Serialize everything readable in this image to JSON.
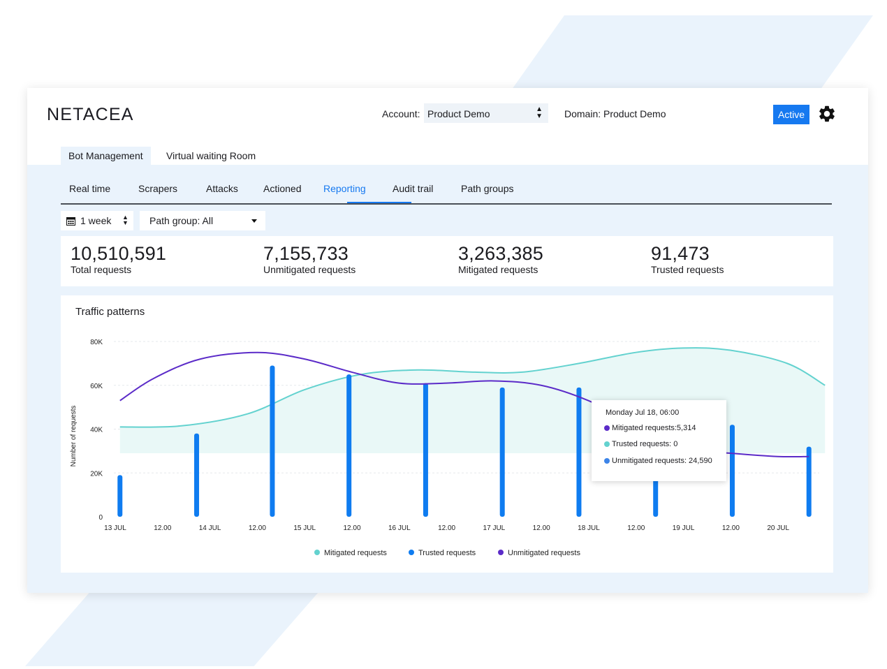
{
  "app": {
    "logo": "NETACEA"
  },
  "header": {
    "account_label": "Account:",
    "account_value": "Product Demo",
    "domain_text": "Domain: Product Demo",
    "status_badge": "Active",
    "settings_icon": "gear-icon"
  },
  "tabs": [
    {
      "label": "Bot Management",
      "active": true
    },
    {
      "label": "Virtual waiting Room",
      "active": false
    }
  ],
  "subnav": [
    {
      "label": "Real time"
    },
    {
      "label": "Scrapers"
    },
    {
      "label": "Attacks"
    },
    {
      "label": "Actioned"
    },
    {
      "label": "Reporting",
      "active": true
    },
    {
      "label": "Audit trail"
    },
    {
      "label": "Path groups"
    }
  ],
  "filters": {
    "period": "1 week",
    "path_group": "Path group: All"
  },
  "stats": [
    {
      "value": "10,510,591",
      "label": "Total requests"
    },
    {
      "value": "7,155,733",
      "label": "Unmitigated requests"
    },
    {
      "value": "3,263,385",
      "label": "Mitigated requests"
    },
    {
      "value": "91,473",
      "label": "Trusted requests"
    }
  ],
  "chart_title": "Traffic patterns",
  "tooltip": {
    "title": "Monday Jul 18, 06:00",
    "rows": [
      {
        "text": "Mitigated requests:5,314",
        "color": "#5b2bc8"
      },
      {
        "text": "Trusted requests: 0",
        "color": "#63d2cf"
      },
      {
        "text": "Unmitigated requests: 24,590",
        "color": "#3c84e8"
      }
    ]
  },
  "colors": {
    "accent": "#1679f0",
    "teal": "#63d2cf",
    "purple": "#5b2bc8",
    "bar": "#0f7cf0"
  },
  "chart_data": {
    "type": "bar",
    "title": "Traffic patterns",
    "ylabel": "Number of requests",
    "ylim": [
      0,
      80000
    ],
    "yticks": [
      "0",
      "20K",
      "40K",
      "60K",
      "80K"
    ],
    "x_ticks": [
      "13 JUL",
      "12.00",
      "14 JUL",
      "12.00",
      "15 JUL",
      "12.00",
      "16 JUL",
      "12.00",
      "17 JUL",
      "12.00",
      "18 JUL",
      "12.00",
      "19 JUL",
      "12.00",
      "20 JUL"
    ],
    "grid": true,
    "legend": [
      "Mitigated requests",
      "Trusted requests",
      "Unmitigated requests"
    ],
    "legend_position": "bottom",
    "bars": {
      "name": "Trusted requests",
      "x": [
        0.05,
        0.86,
        1.66,
        2.47,
        3.28,
        4.09,
        4.9,
        5.71,
        6.52,
        7.33
      ],
      "values": [
        19000,
        38000,
        69000,
        65000,
        61000,
        59000,
        59000,
        18000,
        42000,
        32000
      ]
    },
    "area_series": {
      "name": "Mitigated requests",
      "x": [
        0.05,
        0.7,
        1.4,
        2,
        2.6,
        3.2,
        3.8,
        4.3,
        4.9,
        5.5,
        6,
        6.5,
        7.1,
        7.5
      ],
      "values": [
        41000,
        41500,
        47000,
        58000,
        65000,
        67000,
        66000,
        66000,
        70000,
        75000,
        77000,
        76000,
        70000,
        60000
      ],
      "baseline": 29000
    },
    "line_series": {
      "name": "Unmitigated requests",
      "x": [
        0.05,
        0.4,
        0.9,
        1.5,
        2,
        2.5,
        3,
        3.5,
        4,
        4.5,
        5,
        5.5,
        6,
        6.5,
        7,
        7.33
      ],
      "values": [
        53000,
        63000,
        72000,
        75000,
        72000,
        66000,
        61000,
        61000,
        62000,
        60000,
        53000,
        42000,
        31000,
        29000,
        27500,
        27500
      ]
    }
  }
}
